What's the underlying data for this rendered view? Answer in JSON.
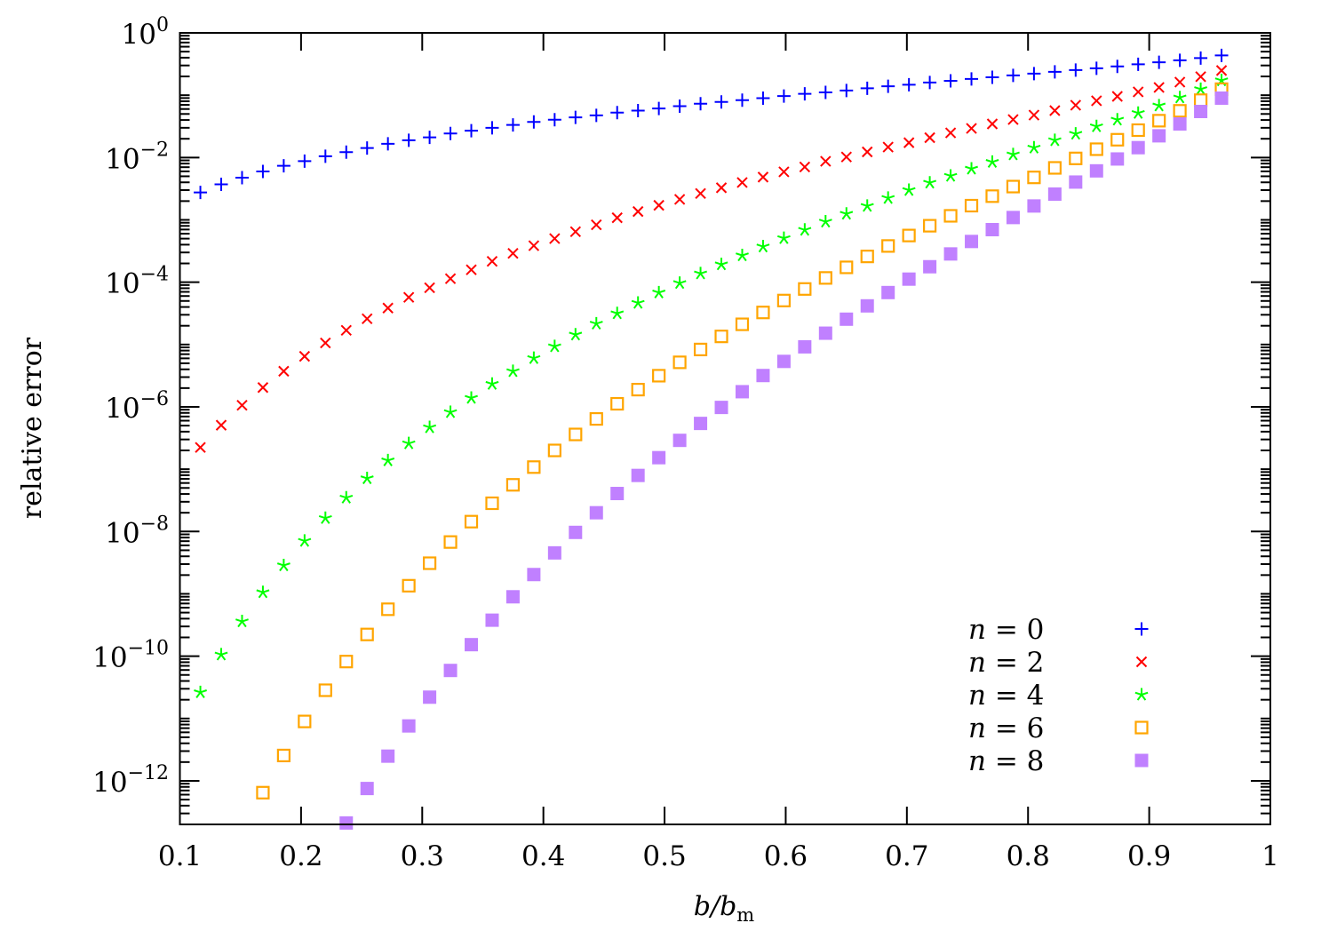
{
  "chart_data": {
    "type": "scatter",
    "xlabel": "b/b_m",
    "ylabel": "relative error",
    "xlim": [
      0.1,
      1
    ],
    "ylim": [
      2e-13,
      1
    ],
    "yscale": "log",
    "grid": false,
    "legend_position": "bottom-right",
    "x_ticks": [
      0.1,
      0.2,
      0.3,
      0.4,
      0.5,
      0.6,
      0.7,
      0.8,
      0.9,
      1
    ],
    "x_tick_labels": [
      "0.1",
      "0.2",
      "0.3",
      "0.4",
      "0.5",
      "0.6",
      "0.7",
      "0.8",
      "0.9",
      "1"
    ],
    "y_ticks": [
      1,
      0.01,
      0.0001,
      1e-06,
      1e-08,
      1e-10,
      1e-12
    ],
    "y_tick_labels": [
      {
        "base": "10",
        "exp": "0"
      },
      {
        "base": "10",
        "exp": "−2"
      },
      {
        "base": "10",
        "exp": "−4"
      },
      {
        "base": "10",
        "exp": "−6"
      },
      {
        "base": "10",
        "exp": "−8"
      },
      {
        "base": "10",
        "exp": "−10"
      },
      {
        "base": "10",
        "exp": "−12"
      }
    ],
    "x": [
      0.1169,
      0.1341,
      0.1513,
      0.1685,
      0.1857,
      0.2029,
      0.2201,
      0.2373,
      0.2545,
      0.2717,
      0.2889,
      0.3061,
      0.3233,
      0.3405,
      0.3577,
      0.3749,
      0.3921,
      0.4093,
      0.4265,
      0.4437,
      0.4609,
      0.4781,
      0.4953,
      0.5125,
      0.5297,
      0.5469,
      0.5641,
      0.5813,
      0.5985,
      0.6157,
      0.6329,
      0.6501,
      0.6673,
      0.6845,
      0.7017,
      0.7189,
      0.7361,
      0.7533,
      0.7705,
      0.7877,
      0.8049,
      0.8221,
      0.8393,
      0.8565,
      0.8737,
      0.8909,
      0.9081,
      0.9253,
      0.9425,
      0.9597
    ],
    "series": [
      {
        "name": "n = 0",
        "marker": "plus",
        "color": "#0000ff",
        "values": [
          0.00275,
          0.00372,
          0.00475,
          0.00598,
          0.00736,
          0.00877,
          0.0105,
          0.0122,
          0.0142,
          0.0166,
          0.0189,
          0.0211,
          0.0243,
          0.0269,
          0.03,
          0.0334,
          0.0373,
          0.0404,
          0.044,
          0.0475,
          0.0525,
          0.0566,
          0.0611,
          0.0667,
          0.0729,
          0.0778,
          0.0832,
          0.0897,
          0.0968,
          0.105,
          0.111,
          0.119,
          0.129,
          0.139,
          0.147,
          0.16,
          0.17,
          0.182,
          0.194,
          0.208,
          0.222,
          0.237,
          0.253,
          0.27,
          0.29,
          0.313,
          0.337,
          0.363,
          0.394,
          0.435
        ]
      },
      {
        "name": "n = 2",
        "marker": "cross",
        "color": "#ff0000",
        "values": [
          2.23e-07,
          5.08e-07,
          1.06e-06,
          2.04e-06,
          3.73e-06,
          6.46e-06,
          1.06e-05,
          1.69e-05,
          2.59e-05,
          3.85e-05,
          5.71e-05,
          8.13e-05,
          0.000114,
          0.000158,
          0.000216,
          0.00029,
          0.000385,
          0.000501,
          0.000646,
          0.000832,
          0.00108,
          0.00136,
          0.00171,
          0.00213,
          0.00265,
          0.00327,
          0.00398,
          0.00485,
          0.0059,
          0.00706,
          0.00869,
          0.0102,
          0.0123,
          0.0147,
          0.0173,
          0.0208,
          0.0249,
          0.0293,
          0.0346,
          0.0407,
          0.048,
          0.0566,
          0.069,
          0.0813,
          0.0957,
          0.113,
          0.133,
          0.162,
          0.198,
          0.249
        ]
      },
      {
        "name": "n = 4",
        "marker": "star",
        "color": "#00ff00",
        "values": [
          2.63e-11,
          1.06e-10,
          3.61e-10,
          1.06e-09,
          2.86e-09,
          7.06e-09,
          1.64e-08,
          3.49e-08,
          7.13e-08,
          1.38e-07,
          2.59e-07,
          4.69e-07,
          8.2e-07,
          1.39e-06,
          2.33e-06,
          3.73e-06,
          6.04e-06,
          9.35e-06,
          1.44e-05,
          2.16e-05,
          3.16e-05,
          4.65e-05,
          6.82e-05,
          9.68e-05,
          0.000138,
          0.000193,
          0.000269,
          0.000373,
          0.000508,
          0.00069,
          0.000935,
          0.00125,
          0.00167,
          0.00224,
          0.003,
          0.00394,
          0.00508,
          0.00661,
          0.00849,
          0.0112,
          0.0144,
          0.0189,
          0.024,
          0.0316,
          0.0404,
          0.0518,
          0.0682,
          0.0918,
          0.125,
          0.173
        ]
      },
      {
        "name": "n = 6",
        "marker": "open-square",
        "color": "#ffa500",
        "values": [
          null,
          null,
          null,
          6.46e-13,
          2.55e-12,
          8.97e-12,
          2.84e-11,
          8.2e-11,
          2.23e-10,
          5.66e-10,
          1.35e-09,
          3.1e-09,
          6.78e-09,
          1.44e-08,
          2.84e-08,
          5.61e-08,
          1.08e-07,
          2e-07,
          3.61e-07,
          6.4e-07,
          1.12e-06,
          1.89e-06,
          3.16e-06,
          5.18e-06,
          8.32e-06,
          1.35e-05,
          2.11e-05,
          3.27e-05,
          5.08e-05,
          7.78e-05,
          0.000117,
          0.000173,
          0.000259,
          0.000381,
          0.000561,
          0.000805,
          0.00116,
          0.00169,
          0.0024,
          0.00342,
          0.0048,
          0.00682,
          0.00968,
          0.0136,
          0.0193,
          0.0275,
          0.039,
          0.0561,
          0.0832,
          0.125
        ]
      },
      {
        "name": "n = 8",
        "marker": "filled-square",
        "color": "#c080ff",
        "values": [
          null,
          null,
          null,
          null,
          null,
          null,
          null,
          2.11e-13,
          7.53e-13,
          2.49e-12,
          7.6e-12,
          2.2e-11,
          5.9e-11,
          1.53e-10,
          3.78e-10,
          8.97e-10,
          2.04e-09,
          4.54e-09,
          9.68e-09,
          2e-08,
          4.07e-08,
          7.94e-08,
          1.53e-07,
          2.9e-07,
          5.42e-07,
          9.79e-07,
          1.75e-06,
          3.18e-06,
          5.36e-06,
          9.18e-06,
          1.52e-05,
          2.55e-05,
          4.17e-05,
          6.82e-05,
          0.000112,
          0.000177,
          0.000284,
          0.00045,
          0.000697,
          0.00109,
          0.00167,
          0.00259,
          0.00404,
          0.00611,
          0.00948,
          0.0144,
          0.0223,
          0.0346,
          0.0548,
          0.0897
        ]
      }
    ]
  }
}
